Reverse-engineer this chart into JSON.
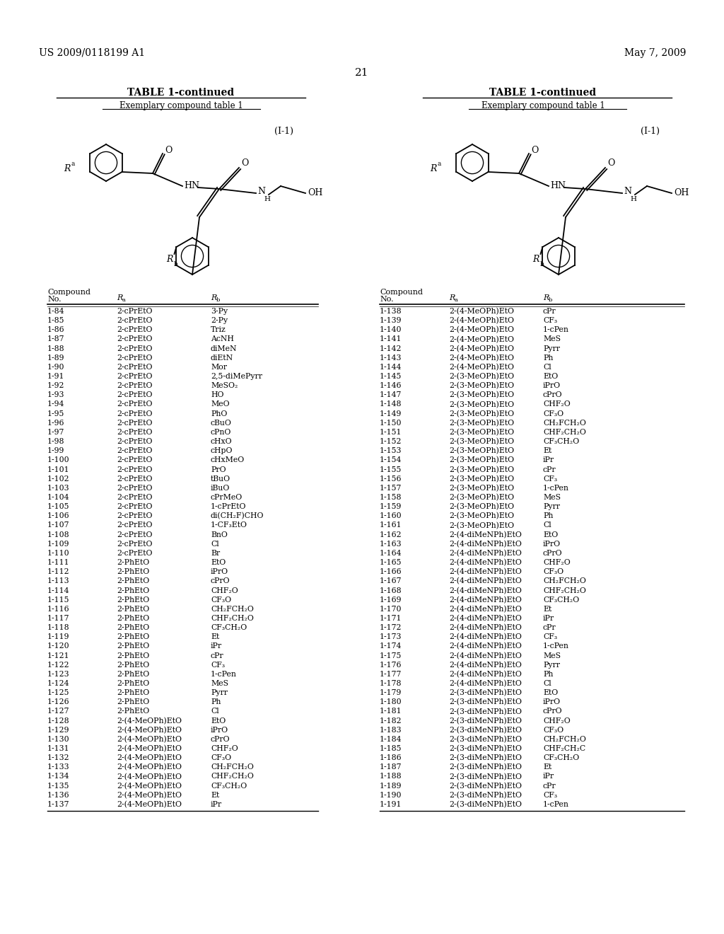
{
  "patent_num": "US 2009/0118199 A1",
  "patent_date": "May 7, 2009",
  "page_num": "21",
  "table_title": "TABLE 1-continued",
  "table_subtitle": "Exemplary compound table 1",
  "formula_label": "(I-1)",
  "left_data": [
    [
      "1-84",
      "2-cPrEtO",
      "3-Py"
    ],
    [
      "1-85",
      "2-cPrEtO",
      "2-Py"
    ],
    [
      "1-86",
      "2-cPrEtO",
      "Triz"
    ],
    [
      "1-87",
      "2-cPrEtO",
      "AcNH"
    ],
    [
      "1-88",
      "2-cPrEtO",
      "diMeN"
    ],
    [
      "1-89",
      "2-cPrEtO",
      "diEtN"
    ],
    [
      "1-90",
      "2-cPrEtO",
      "Mor"
    ],
    [
      "1-91",
      "2-cPrEtO",
      "2,5-diMePyrr"
    ],
    [
      "1-92",
      "2-cPrEtO",
      "MeSO₂"
    ],
    [
      "1-93",
      "2-cPrEtO",
      "HO"
    ],
    [
      "1-94",
      "2-cPrEtO",
      "MeO"
    ],
    [
      "1-95",
      "2-cPrEtO",
      "PhO"
    ],
    [
      "1-96",
      "2-cPrEtO",
      "cBuO"
    ],
    [
      "1-97",
      "2-cPrEtO",
      "cPnO"
    ],
    [
      "1-98",
      "2-cPrEtO",
      "cHxO"
    ],
    [
      "1-99",
      "2-cPrEtO",
      "cHpO"
    ],
    [
      "1-100",
      "2-cPrEtO",
      "cHxMeO"
    ],
    [
      "1-101",
      "2-cPrEtO",
      "PrO"
    ],
    [
      "1-102",
      "2-cPrEtO",
      "tBuO"
    ],
    [
      "1-103",
      "2-cPrEtO",
      "iBuO"
    ],
    [
      "1-104",
      "2-cPrEtO",
      "cPrMeO"
    ],
    [
      "1-105",
      "2-cPrEtO",
      "1-cPrEtO"
    ],
    [
      "1-106",
      "2-cPrEtO",
      "di(CH₂F)CHO"
    ],
    [
      "1-107",
      "2-cPrEtO",
      "1-CF₃EtO"
    ],
    [
      "1-108",
      "2-cPrEtO",
      "BnO"
    ],
    [
      "1-109",
      "2-cPrEtO",
      "Cl"
    ],
    [
      "1-110",
      "2-cPrEtO",
      "Br"
    ],
    [
      "1-111",
      "2-PhEtO",
      "EtO"
    ],
    [
      "1-112",
      "2-PhEtO",
      "iPrO"
    ],
    [
      "1-113",
      "2-PhEtO",
      "cPrO"
    ],
    [
      "1-114",
      "2-PhEtO",
      "CHF₂O"
    ],
    [
      "1-115",
      "2-PhEtO",
      "CF₃O"
    ],
    [
      "1-116",
      "2-PhEtO",
      "CH₂FCH₂O"
    ],
    [
      "1-117",
      "2-PhEtO",
      "CHF₂CH₂O"
    ],
    [
      "1-118",
      "2-PhEtO",
      "CF₃CH₂O"
    ],
    [
      "1-119",
      "2-PhEtO",
      "Et"
    ],
    [
      "1-120",
      "2-PhEtO",
      "iPr"
    ],
    [
      "1-121",
      "2-PhEtO",
      "cPr"
    ],
    [
      "1-122",
      "2-PhEtO",
      "CF₃"
    ],
    [
      "1-123",
      "2-PhEtO",
      "1-cPen"
    ],
    [
      "1-124",
      "2-PhEtO",
      "MeS"
    ],
    [
      "1-125",
      "2-PhEtO",
      "Pyrr"
    ],
    [
      "1-126",
      "2-PhEtO",
      "Ph"
    ],
    [
      "1-127",
      "2-PhEtO",
      "Cl"
    ],
    [
      "1-128",
      "2-(4-MeOPh)EtO",
      "EtO"
    ],
    [
      "1-129",
      "2-(4-MeOPh)EtO",
      "iPrO"
    ],
    [
      "1-130",
      "2-(4-MeOPh)EtO",
      "cPrO"
    ],
    [
      "1-131",
      "2-(4-MeOPh)EtO",
      "CHF₂O"
    ],
    [
      "1-132",
      "2-(4-MeOPh)EtO",
      "CF₃O"
    ],
    [
      "1-133",
      "2-(4-MeOPh)EtO",
      "CH₂FCH₂O"
    ],
    [
      "1-134",
      "2-(4-MeOPh)EtO",
      "CHF₂CH₂O"
    ],
    [
      "1-135",
      "2-(4-MeOPh)EtO",
      "CF₃CH₂O"
    ],
    [
      "1-136",
      "2-(4-MeOPh)EtO",
      "Et"
    ],
    [
      "1-137",
      "2-(4-MeOPh)EtO",
      "iPr"
    ]
  ],
  "right_data": [
    [
      "1-138",
      "2-(4-MeOPh)EtO",
      "cPr"
    ],
    [
      "1-139",
      "2-(4-MeOPh)EtO",
      "CF₃"
    ],
    [
      "1-140",
      "2-(4-MeOPh)EtO",
      "1-cPen"
    ],
    [
      "1-141",
      "2-(4-MeOPh)EtO",
      "MeS"
    ],
    [
      "1-142",
      "2-(4-MeOPh)EtO",
      "Pyrr"
    ],
    [
      "1-143",
      "2-(4-MeOPh)EtO",
      "Ph"
    ],
    [
      "1-144",
      "2-(4-MeOPh)EtO",
      "Cl"
    ],
    [
      "1-145",
      "2-(3-MeOPh)EtO",
      "EtO"
    ],
    [
      "1-146",
      "2-(3-MeOPh)EtO",
      "iPrO"
    ],
    [
      "1-147",
      "2-(3-MeOPh)EtO",
      "cPrO"
    ],
    [
      "1-148",
      "2-(3-MeOPh)EtO",
      "CHF₂O"
    ],
    [
      "1-149",
      "2-(3-MeOPh)EtO",
      "CF₃O"
    ],
    [
      "1-150",
      "2-(3-MeOPh)EtO",
      "CH₂FCH₂O"
    ],
    [
      "1-151",
      "2-(3-MeOPh)EtO",
      "CHF₂CH₂O"
    ],
    [
      "1-152",
      "2-(3-MeOPh)EtO",
      "CF₃CH₂O"
    ],
    [
      "1-153",
      "2-(3-MeOPh)EtO",
      "Et"
    ],
    [
      "1-154",
      "2-(3-MeOPh)EtO",
      "iPr"
    ],
    [
      "1-155",
      "2-(3-MeOPh)EtO",
      "cPr"
    ],
    [
      "1-156",
      "2-(3-MeOPh)EtO",
      "CF₃"
    ],
    [
      "1-157",
      "2-(3-MeOPh)EtO",
      "1-cPen"
    ],
    [
      "1-158",
      "2-(3-MeOPh)EtO",
      "MeS"
    ],
    [
      "1-159",
      "2-(3-MeOPh)EtO",
      "Pyrr"
    ],
    [
      "1-160",
      "2-(3-MeOPh)EtO",
      "Ph"
    ],
    [
      "1-161",
      "2-(3-MeOPh)EtO",
      "Cl"
    ],
    [
      "1-162",
      "2-(4-diMeNPh)EtO",
      "EtO"
    ],
    [
      "1-163",
      "2-(4-diMeNPh)EtO",
      "iPrO"
    ],
    [
      "1-164",
      "2-(4-diMeNPh)EtO",
      "cPrO"
    ],
    [
      "1-165",
      "2-(4-diMeNPh)EtO",
      "CHF₂O"
    ],
    [
      "1-166",
      "2-(4-diMeNPh)EtO",
      "CF₃O"
    ],
    [
      "1-167",
      "2-(4-diMeNPh)EtO",
      "CH₂FCH₂O"
    ],
    [
      "1-168",
      "2-(4-diMeNPh)EtO",
      "CHF₂CH₂O"
    ],
    [
      "1-169",
      "2-(4-diMeNPh)EtO",
      "CF₃CH₂O"
    ],
    [
      "1-170",
      "2-(4-diMeNPh)EtO",
      "Et"
    ],
    [
      "1-171",
      "2-(4-diMeNPh)EtO",
      "iPr"
    ],
    [
      "1-172",
      "2-(4-diMeNPh)EtO",
      "cPr"
    ],
    [
      "1-173",
      "2-(4-diMeNPh)EtO",
      "CF₃"
    ],
    [
      "1-174",
      "2-(4-diMeNPh)EtO",
      "1-cPen"
    ],
    [
      "1-175",
      "2-(4-diMeNPh)EtO",
      "MeS"
    ],
    [
      "1-176",
      "2-(4-diMeNPh)EtO",
      "Pyrr"
    ],
    [
      "1-177",
      "2-(4-diMeNPh)EtO",
      "Ph"
    ],
    [
      "1-178",
      "2-(4-diMeNPh)EtO",
      "Cl"
    ],
    [
      "1-179",
      "2-(3-diMeNPh)EtO",
      "EtO"
    ],
    [
      "1-180",
      "2-(3-diMeNPh)EtO",
      "iPrO"
    ],
    [
      "1-181",
      "2-(3-diMeNPh)EtO",
      "cPrO"
    ],
    [
      "1-182",
      "2-(3-diMeNPh)EtO",
      "CHF₂O"
    ],
    [
      "1-183",
      "2-(3-diMeNPh)EtO",
      "CF₃O"
    ],
    [
      "1-184",
      "2-(3-diMeNPh)EtO",
      "CH₂FCH₂O"
    ],
    [
      "1-185",
      "2-(3-diMeNPh)EtO",
      "CHF₂CH₂C"
    ],
    [
      "1-186",
      "2-(3-diMeNPh)EtO",
      "CF₃CH₂O"
    ],
    [
      "1-187",
      "2-(3-diMeNPh)EtO",
      "Et"
    ],
    [
      "1-188",
      "2-(3-diMeNPh)EtO",
      "iPr"
    ],
    [
      "1-189",
      "2-(3-diMeNPh)EtO",
      "cPr"
    ],
    [
      "1-190",
      "2-(3-diMeNPh)EtO",
      "CF₃"
    ],
    [
      "1-191",
      "2-(3-diMeNPh)EtO",
      "1-cPen"
    ]
  ]
}
